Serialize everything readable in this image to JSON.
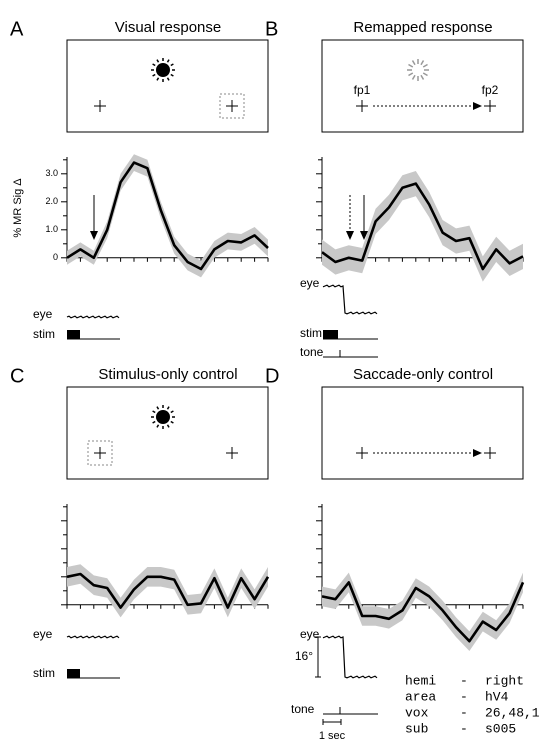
{
  "chart_data": [
    {
      "type": "line",
      "panel_label": "A",
      "title": "Visual response",
      "ylabel": "% MR Sig Δ",
      "ylim": [
        -0.6,
        3.6
      ],
      "yticks": [
        0,
        {
          "value": 1,
          "label": "1.0"
        },
        {
          "value": 2,
          "label": "2.0"
        },
        {
          "value": 3,
          "label": "3.0"
        }
      ],
      "yminor_ticks": [
        0.5,
        1.5,
        2.5,
        3.5
      ],
      "show_tick_labels": true,
      "color": "#000000",
      "band_color": "#c8c8c8",
      "values": [
        0,
        0.3,
        0,
        1.0,
        2.7,
        3.4,
        3.2,
        1.7,
        0.45,
        -0.15,
        -0.4,
        0.3,
        0.6,
        0.55,
        0.8,
        0.35
      ],
      "errors": [
        0.25,
        0.25,
        0.25,
        0.3,
        0.3,
        0.3,
        0.3,
        0.3,
        0.3,
        0.3,
        0.3,
        0.3,
        0.3,
        0.3,
        0.3,
        0.3
      ],
      "eye_label": "eye",
      "stim_label": "stim"
    },
    {
      "type": "line",
      "panel_label": "B",
      "title": "Remapped response",
      "fp1": "fp1",
      "fp2": "fp2",
      "ylim": [
        -0.6,
        3.6
      ],
      "yticks": [
        0,
        1,
        2,
        3
      ],
      "yminor_ticks": [
        0.5,
        1.5,
        2.5,
        3.5
      ],
      "show_tick_labels": false,
      "color": "#000000",
      "band_color": "#c8c8c8",
      "values": [
        0.2,
        -0.15,
        0,
        -0.1,
        1.3,
        1.8,
        2.5,
        2.65,
        1.9,
        0.9,
        0.6,
        0.7,
        -0.4,
        0.3,
        -0.2,
        0.05
      ],
      "errors": [
        0.45,
        0.45,
        0.45,
        0.45,
        0.45,
        0.45,
        0.45,
        0.45,
        0.45,
        0.45,
        0.45,
        0.45,
        0.45,
        0.45,
        0.45,
        0.45
      ],
      "eye_label": "eye",
      "stim_label": "stim",
      "tone_label": "tone"
    },
    {
      "type": "line",
      "panel_label": "C",
      "title": "Stimulus-only control",
      "ylim": [
        -0.6,
        3.6
      ],
      "yticks": [
        0,
        1,
        2,
        3
      ],
      "yminor_ticks": [
        0.5,
        1.5,
        2.5,
        3.5
      ],
      "show_tick_labels": false,
      "color": "#000000",
      "band_color": "#c8c8c8",
      "values": [
        1.0,
        1.1,
        0.7,
        0.6,
        -0.1,
        0.55,
        1.0,
        1.0,
        0.9,
        0,
        0.05,
        0.95,
        -0.1,
        0.95,
        0.2,
        1.0
      ],
      "errors": [
        0.35,
        0.35,
        0.35,
        0.35,
        0.35,
        0.35,
        0.35,
        0.35,
        0.35,
        0.35,
        0.35,
        0.35,
        0.35,
        0.35,
        0.35,
        0.35
      ],
      "eye_label": "eye",
      "stim_label": "stim"
    },
    {
      "type": "line",
      "panel_label": "D",
      "title": "Saccade-only control",
      "ylim": [
        -1.8,
        3.6
      ],
      "yticks": [
        0,
        1,
        2,
        3
      ],
      "yminor_ticks": [
        0.5,
        1.5,
        2.5,
        3.5
      ],
      "show_tick_labels": false,
      "color": "#000000",
      "band_color": "#c8c8c8",
      "values": [
        0.3,
        0.2,
        0.8,
        -0.4,
        -0.4,
        -0.5,
        -0.2,
        0.6,
        0.3,
        -0.2,
        -0.8,
        -1.3,
        -0.6,
        -0.9,
        -0.3,
        0.8
      ],
      "errors": [
        0.35,
        0.35,
        0.35,
        0.35,
        0.35,
        0.35,
        0.35,
        0.35,
        0.35,
        0.35,
        0.35,
        0.35,
        0.35,
        0.35,
        0.35,
        0.35
      ],
      "eye_label": "eye",
      "tone_label": "tone",
      "eye_scale": "16°",
      "time_scale": "1 sec"
    }
  ],
  "info": {
    "separator": "-",
    "rows": [
      [
        "hemi",
        "right"
      ],
      [
        "area",
        "hV4"
      ],
      [
        "vox",
        "26,48,1"
      ],
      [
        "sub",
        "s005"
      ]
    ]
  }
}
